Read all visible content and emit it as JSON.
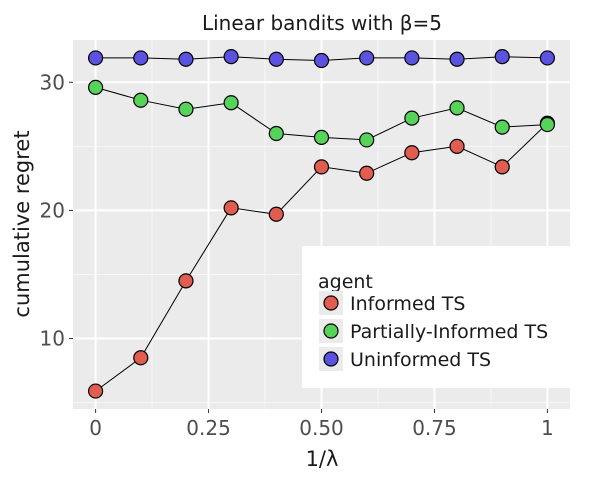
{
  "chart_data": {
    "type": "line",
    "title": "Linear bandits with β=5",
    "xlabel": "1/λ",
    "ylabel": "cumulative regret",
    "x": [
      0,
      0.1,
      0.2,
      0.3,
      0.4,
      0.5,
      0.6,
      0.7,
      0.8,
      0.9,
      1.0
    ],
    "xlim": [
      -0.05,
      1.05
    ],
    "ylim": [
      4.5,
      33.3
    ],
    "xticks": [
      0,
      0.25,
      0.5,
      0.75,
      1
    ],
    "xtick_labels": [
      "0",
      "0.25",
      "0.50",
      "0.75",
      "1"
    ],
    "yticks": [
      10,
      20,
      30
    ],
    "ytick_labels": [
      "10",
      "20",
      "30"
    ],
    "grid": true,
    "legend": {
      "title": "agent",
      "placement": "right-inside"
    },
    "series": [
      {
        "name": "Informed TS",
        "color": "#e05d4f",
        "values": [
          5.9,
          8.5,
          14.5,
          20.2,
          19.7,
          23.4,
          22.9,
          24.5,
          25.0,
          23.4,
          26.8
        ]
      },
      {
        "name": "Partially-Informed TS",
        "color": "#56d45a",
        "values": [
          29.6,
          28.6,
          27.9,
          28.4,
          26.0,
          25.7,
          25.5,
          27.2,
          28.0,
          26.5,
          26.7
        ]
      },
      {
        "name": "Uninformed TS",
        "color": "#5b52e0",
        "values": [
          31.9,
          31.9,
          31.8,
          32.0,
          31.8,
          31.7,
          31.9,
          31.9,
          31.8,
          32.0,
          31.9
        ]
      }
    ]
  }
}
